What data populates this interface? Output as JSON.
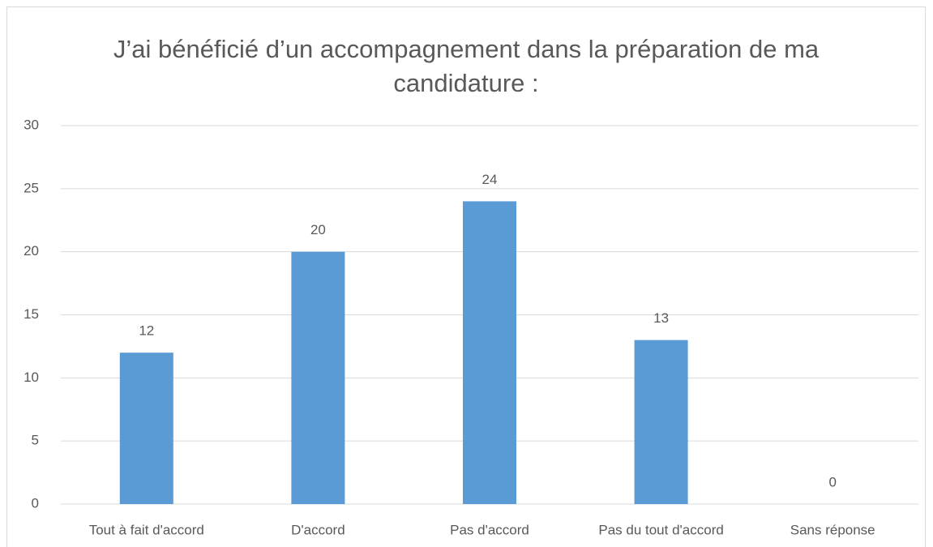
{
  "chart_data": {
    "type": "bar",
    "title": "J’ai bénéficié d’un accompagnement dans la préparation de ma candidature :",
    "categories": [
      "Tout à fait d'accord",
      "D'accord",
      "Pas d'accord",
      "Pas du tout d'accord",
      "Sans réponse"
    ],
    "values": [
      12,
      20,
      24,
      13,
      0
    ],
    "color": "#5b9bd5",
    "ylim": [
      0,
      30
    ],
    "yticks": [
      0,
      5,
      10,
      15,
      20,
      25,
      30
    ],
    "grid": true
  }
}
